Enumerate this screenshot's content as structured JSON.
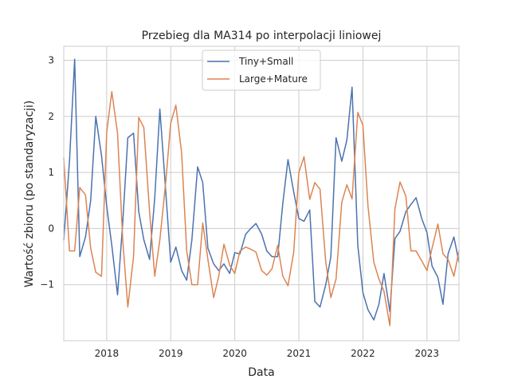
{
  "chart_data": {
    "type": "line",
    "title": "Przebieg dla MA314 po interpolacji liniowej",
    "xlabel": "Data",
    "ylabel": "Wartość zbioru (po standaryzacji)",
    "xlim": [
      2017.33,
      2023.5
    ],
    "ylim": [
      -2.0,
      3.25
    ],
    "xticks": [
      2018,
      2019,
      2020,
      2021,
      2022,
      2023
    ],
    "xtick_labels": [
      "2018",
      "2019",
      "2020",
      "2021",
      "2022",
      "2023"
    ],
    "yticks": [
      -1,
      0,
      1,
      2,
      3
    ],
    "ytick_labels": [
      "−1",
      "0",
      "1",
      "2",
      "3"
    ],
    "grid": true,
    "legend_position": "upper-center",
    "series": [
      {
        "name": "Tiny+Small",
        "color": "#4c72b0",
        "x": [
          2017.33,
          2017.42,
          2017.5,
          2017.58,
          2017.67,
          2017.75,
          2017.83,
          2017.92,
          2018.0,
          2018.08,
          2018.17,
          2018.25,
          2018.33,
          2018.42,
          2018.5,
          2018.58,
          2018.67,
          2018.75,
          2018.83,
          2018.92,
          2019.0,
          2019.08,
          2019.17,
          2019.25,
          2019.33,
          2019.42,
          2019.5,
          2019.58,
          2019.67,
          2019.75,
          2019.83,
          2019.92,
          2020.0,
          2020.08,
          2020.17,
          2020.25,
          2020.33,
          2020.42,
          2020.5,
          2020.58,
          2020.67,
          2020.75,
          2020.83,
          2020.92,
          2021.0,
          2021.08,
          2021.17,
          2021.25,
          2021.33,
          2021.42,
          2021.5,
          2021.58,
          2021.67,
          2021.75,
          2021.83,
          2021.92,
          2022.0,
          2022.08,
          2022.17,
          2022.25,
          2022.33,
          2022.42,
          2022.5,
          2022.58,
          2022.67,
          2022.75,
          2022.83,
          2022.92,
          2023.0,
          2023.08,
          2023.17,
          2023.25,
          2023.33,
          2023.42,
          2023.5
        ],
        "y": [
          -0.2,
          1.2,
          3.02,
          -0.5,
          -0.15,
          0.5,
          2.0,
          1.3,
          0.4,
          -0.3,
          -1.18,
          0.1,
          1.62,
          1.7,
          0.3,
          -0.2,
          -0.55,
          0.55,
          2.13,
          0.7,
          -0.6,
          -0.33,
          -0.75,
          -0.92,
          -0.2,
          1.1,
          0.82,
          -0.35,
          -0.63,
          -0.75,
          -0.63,
          -0.8,
          -0.43,
          -0.45,
          -0.1,
          0.0,
          0.09,
          -0.1,
          -0.4,
          -0.5,
          -0.5,
          0.45,
          1.23,
          0.65,
          0.18,
          0.13,
          0.33,
          -1.3,
          -1.4,
          -1.0,
          -0.5,
          1.62,
          1.2,
          1.58,
          2.52,
          -0.3,
          -1.14,
          -1.45,
          -1.63,
          -1.35,
          -0.8,
          -1.48,
          -0.18,
          -0.05,
          0.3,
          0.43,
          0.55,
          0.17,
          -0.07,
          -0.67,
          -0.87,
          -1.35,
          -0.45,
          -0.15,
          -0.6
        ]
      },
      {
        "name": "Large+Mature",
        "color": "#dd8452",
        "x": [
          2017.33,
          2017.42,
          2017.5,
          2017.58,
          2017.67,
          2017.75,
          2017.83,
          2017.92,
          2018.0,
          2018.08,
          2018.17,
          2018.25,
          2018.33,
          2018.42,
          2018.5,
          2018.58,
          2018.67,
          2018.75,
          2018.83,
          2018.92,
          2019.0,
          2019.08,
          2019.17,
          2019.25,
          2019.33,
          2019.42,
          2019.5,
          2019.58,
          2019.67,
          2019.75,
          2019.83,
          2019.92,
          2020.0,
          2020.08,
          2020.17,
          2020.25,
          2020.33,
          2020.42,
          2020.5,
          2020.58,
          2020.67,
          2020.75,
          2020.83,
          2020.92,
          2021.0,
          2021.08,
          2021.17,
          2021.25,
          2021.33,
          2021.42,
          2021.5,
          2021.58,
          2021.67,
          2021.75,
          2021.83,
          2021.92,
          2022.0,
          2022.08,
          2022.17,
          2022.25,
          2022.33,
          2022.42,
          2022.5,
          2022.58,
          2022.67,
          2022.75,
          2022.83,
          2022.92,
          2023.0,
          2023.08,
          2023.17,
          2023.25,
          2023.33,
          2023.42,
          2023.5
        ],
        "y": [
          1.25,
          -0.4,
          -0.4,
          0.73,
          0.6,
          -0.35,
          -0.78,
          -0.85,
          1.72,
          2.44,
          1.7,
          -0.2,
          -1.4,
          -0.5,
          1.98,
          1.8,
          0.3,
          -0.85,
          -0.2,
          0.8,
          1.88,
          2.2,
          1.35,
          -0.4,
          -1.0,
          -1.0,
          0.1,
          -0.55,
          -1.23,
          -0.85,
          -0.28,
          -0.65,
          -0.8,
          -0.4,
          -0.33,
          -0.37,
          -0.42,
          -0.75,
          -0.83,
          -0.72,
          -0.3,
          -0.85,
          -1.02,
          -0.42,
          1.0,
          1.28,
          0.52,
          0.82,
          0.7,
          -0.6,
          -1.23,
          -0.9,
          0.47,
          0.78,
          0.53,
          2.07,
          1.84,
          0.4,
          -0.6,
          -0.9,
          -1.12,
          -1.73,
          0.35,
          0.83,
          0.58,
          -0.4,
          -0.4,
          -0.58,
          -0.75,
          -0.35,
          0.08,
          -0.45,
          -0.55,
          -0.85,
          -0.4
        ]
      }
    ]
  }
}
